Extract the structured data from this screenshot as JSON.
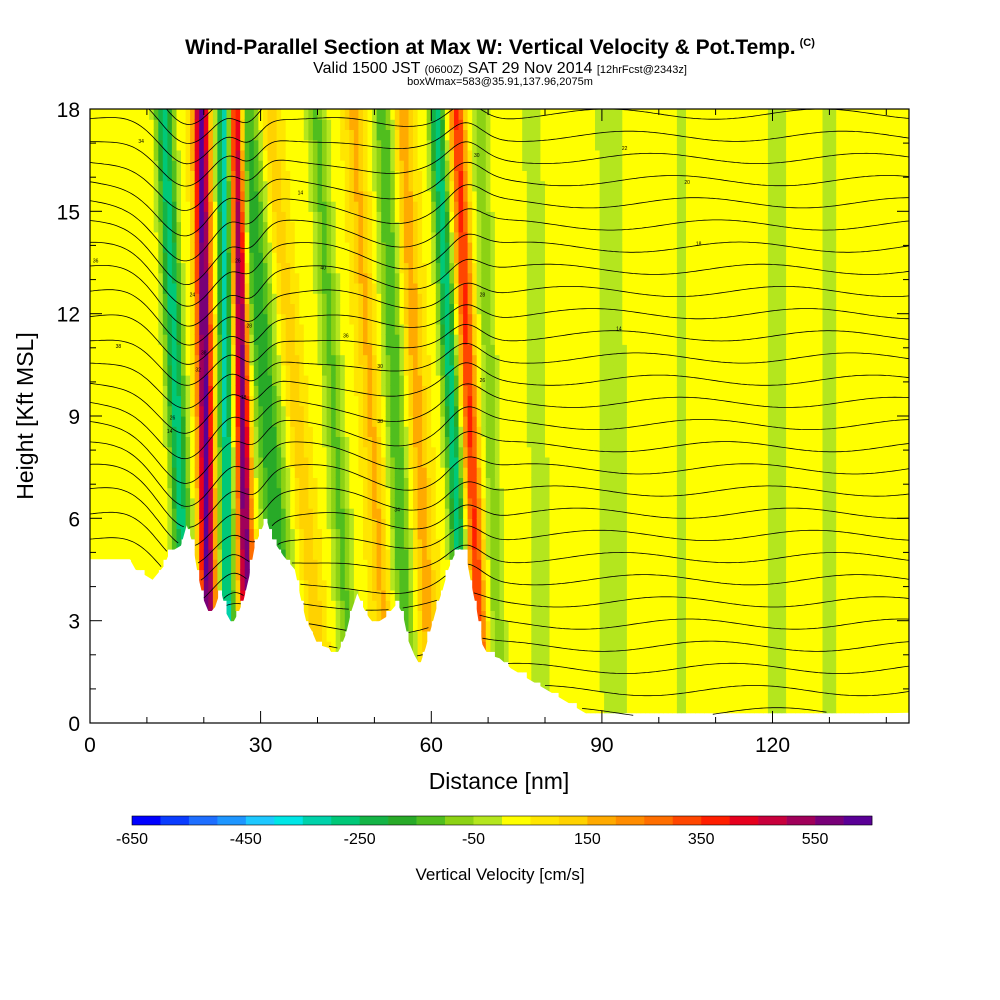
{
  "header": {
    "title": "Wind-Parallel Section at Max W: Vertical Velocity & Pot.Temp.",
    "copyright": "(C)",
    "valid_prefix": "Valid 1500 JST",
    "valid_utc": "(0600Z)",
    "valid_date": "SAT 29 Nov 2014",
    "forecast": "[12hrFcst@2343z]",
    "box_info": "boxWmax=583@35.91,137.96,2075m"
  },
  "chart_data": {
    "type": "heatmap",
    "xlabel": "Distance [nm]",
    "ylabel": "Height [Kft MSL]",
    "xlim": [
      0,
      144
    ],
    "ylim": [
      0,
      18
    ],
    "x_ticks": [
      0,
      30,
      60,
      90,
      120
    ],
    "y_ticks": [
      0,
      3,
      6,
      9,
      12,
      15,
      18
    ],
    "colorbar": {
      "title": "Vertical Velocity [cm/s]",
      "min": -650,
      "max": 650,
      "step": 50,
      "tick_labels": [
        -650,
        -450,
        -250,
        -50,
        150,
        350,
        550
      ],
      "colors": [
        "#0000ff",
        "#0a3cff",
        "#1e6eff",
        "#1e96ff",
        "#1ec8ff",
        "#00e6e6",
        "#00d2aa",
        "#00c878",
        "#14b446",
        "#28aa28",
        "#50be1e",
        "#8cd214",
        "#b4e61e",
        "#ffff00",
        "#ffe600",
        "#ffd200",
        "#ffaa00",
        "#ff8c00",
        "#ff6e00",
        "#ff4600",
        "#ff1e00",
        "#e6001e",
        "#c8003c",
        "#a0005a",
        "#780078",
        "#5a0096"
      ]
    },
    "updraft_bands_x_nm": [
      20,
      27,
      68
    ],
    "downdraft_bands_x_nm": [
      15,
      24,
      32,
      65
    ],
    "theta_isentrope_labels": [
      "34",
      "36",
      "38",
      "26",
      "14",
      "24",
      "38",
      "32",
      "26",
      "18",
      "28",
      "14",
      "40",
      "36",
      "30",
      "38",
      "34",
      "30",
      "28",
      "26",
      "22",
      "20",
      "18",
      "14"
    ]
  }
}
